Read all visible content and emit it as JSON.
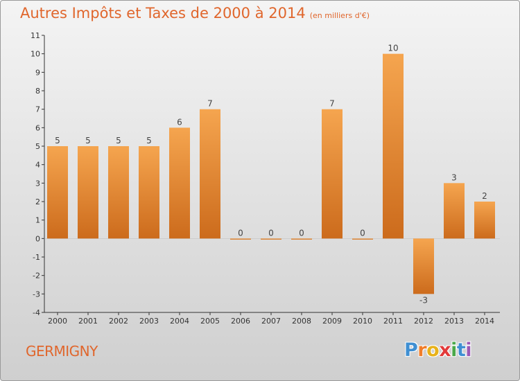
{
  "title": "Autres Impôts et Taxes de 2000 à 2014",
  "unit_label": "(en milliers d'€)",
  "commune": "GERMIGNY",
  "logo": {
    "letters": [
      "P",
      "r",
      "o",
      "x",
      "i",
      "t",
      "i"
    ],
    "colors": [
      "#3f8fd2",
      "#f07d2a",
      "#e8b21a",
      "#e23a3a",
      "#4aa84a",
      "#3f8fd2",
      "#9b59b6"
    ]
  },
  "colors": {
    "bar_light": "#f5a54f",
    "bar_dark": "#cc6b1c",
    "title": "#e0662c",
    "axis": "#333333"
  },
  "chart_data": {
    "type": "bar",
    "title": "Autres Impôts et Taxes de 2000 à 2014",
    "xlabel": "",
    "ylabel": "",
    "categories": [
      "2000",
      "2001",
      "2002",
      "2003",
      "2004",
      "2005",
      "2006",
      "2007",
      "2008",
      "2009",
      "2010",
      "2011",
      "2012",
      "2013",
      "2014"
    ],
    "values": [
      5,
      5,
      5,
      5,
      6,
      7,
      0,
      0,
      0,
      7,
      0,
      10,
      -3,
      3,
      2
    ],
    "ylim": [
      -4,
      11
    ],
    "yticks": [
      "-4",
      "-3",
      "-2",
      "-1",
      "0",
      "1",
      "2",
      "3",
      "4",
      "5",
      "6",
      "7",
      "8",
      "9",
      "10",
      "11"
    ],
    "grid": false,
    "legend": "none"
  }
}
